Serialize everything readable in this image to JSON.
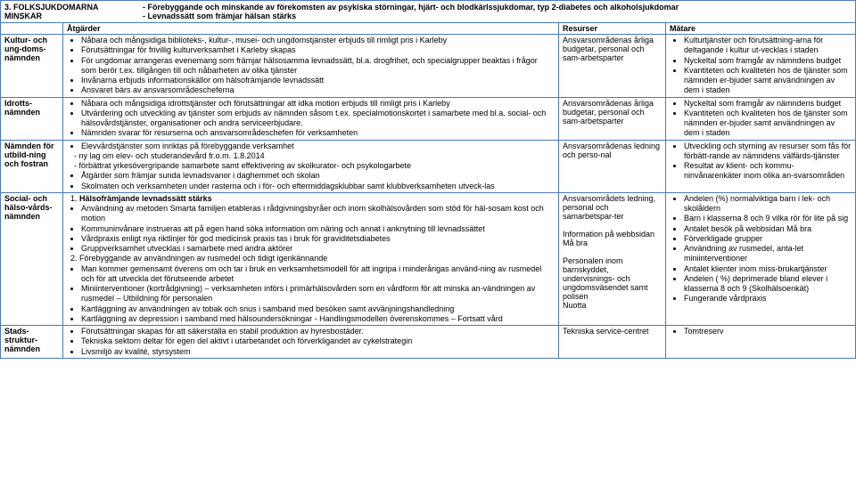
{
  "title_number": "3. FOLKSJUKDOMARNA MINSKAR",
  "title_desc": "- Förebyggande och minskande av förekomsten av psykiska störningar, hjärt- och blodkärlssjukdomar, typ 2-diabetes och alkoholsjukdomar\n- Levnadssätt som främjar hälsan stärks",
  "headers": {
    "c1": "",
    "c2": "Åtgärder",
    "c3": "Resurser",
    "c4": "Mätare"
  },
  "rows": [
    {
      "committee": "Kultur- och ung-doms-nämnden",
      "actions": [
        "Nåbara och mångsidiga biblioteks-, kultur-, musei- och ungdomstjänster erbjuds till rimligt pris i Karleby",
        "Förutsättningar för frivillig kulturverksamhet i Karleby skapas",
        "För ungdomar arrangeras evenemang som främjar hälsosamma levnadssätt, bl.a. drogfrihet, och specialgrupper beaktas i frågor som berör t.ex. tillgången till och nåbarheten av olika tjänster",
        "Invånarna erbjuds informationskällor om hälsofrämjande levnadssätt",
        "Ansvaret bärs av ansvarsområdescheferna"
      ],
      "resources": "Ansvarsområdenas årliga budgetar, personal och sam-arbetsparter",
      "metrics": [
        "Kulturtjänster och förutsättning-arna för deltagande i kultur ut-vecklas i staden",
        "Nyckeltal som framgår av nämndens budget",
        "Kvantiteten och kvaliteten hos de tjänster som nämnden er-bjuder samt användningen av dem i staden"
      ]
    },
    {
      "committee": "Idrotts-nämnden",
      "actions": [
        "Nåbara och mångsidiga idrottstjänster och förutsättningar att idka motion erbjuds till rimligt pris i Karleby",
        "Utvärdering och utveckling av tjänster som erbjuds av nämnden såsom t.ex. specialmotionskortet i samarbete med bl.a. social- och hälsovårdstjänster, organisationer och andra serviceerbjudare.",
        "Nämnden svarar för resurserna och ansvarsområdeschefen för verksamheten"
      ],
      "resources": "Ansvarsområdenas årliga budgetar, personal och sam-arbetsparter",
      "metrics": [
        "Nyckeltal som framgår av nämndens budget",
        "Kvantiteten och kvaliteten hos de tjänster som nämnden er-bjuder samt användningen av dem i staden"
      ]
    },
    {
      "committee": "Nämnden för utbild-ning och fostran",
      "actions_mixed": [
        {
          "type": "ul",
          "items": [
            "Elevvårdstjänster som inriktas på förebyggande verksamhet"
          ]
        },
        {
          "type": "dash",
          "items": [
            "ny lag om elev- och studerandevård fr.o.m. 1.8.2014",
            "förbättrat yrkesövergripande samarbete samt effektivering av skolkurator- och psykologarbete"
          ]
        },
        {
          "type": "ul",
          "items": [
            "Åtgärder som främjar sunda levnadsvanor i daghemmet och skolan",
            "Skolmaten och verksamheten under rasterna och i för- och eftermiddagsklubbar samt klubbverksamheten utveck-las"
          ]
        }
      ],
      "resources": "Ansvarsområdenas ledning och perso-nal",
      "metrics": [
        "Utveckling och styrning av resurser som fås för förbätt-rande av nämndens välfärds-tjänster",
        "Resultat av klient- och kommu-ninvånarenkäter inom olika an-svarsområden"
      ]
    },
    {
      "committee": "Social- och hälso-vårds-nämnden",
      "actions_mixed": [
        {
          "type": "num",
          "text": "1.   Hälsofrämjande levnadssätt stärks",
          "bold": true
        },
        {
          "type": "ul",
          "items": [
            "Användning av metoden Smarta familjen etableras i rådgivningsbyråer och inom skolhälsovården som stöd för häl-sosam kost och motion",
            "Kommuninvånare instrueras att på egen hand söka information om näring och annat i anknytning till levnadssättet",
            "Vårdpraxis enligt nya riktlinjer för god medicinsk praxis tas i bruk för graviditetsdiabetes",
            "Gruppverksamhet utvecklas i samarbete med andra aktörer"
          ]
        },
        {
          "type": "num",
          "text": "2.   Förebyggande av användningen av rusmedel och tidigt igenkännande"
        },
        {
          "type": "ul",
          "items": [
            "Man kommer gemensamt överens om och tar i bruk en verksamhetsmodell för att ingripa i minderårigas använd-ning av rusmedel och för att utveckla det förutseende arbetet",
            "Miniinterventioner (kortrådgivning) – verksamheten införs i primärhälsovården som en vårdform för att minska an-vändningen av rusmedel – Utbildning för personalen",
            "Kartläggning av användningen av tobak och snus i samband med besöken samt avvänjningshandledning",
            "Kartläggning av depression i samband med hälsoundersökningar - Handlingsmodellen överenskommes – Fortsatt vård"
          ]
        }
      ],
      "resources": "Ansvarsområdets ledning, personal och samarbetspar-ter\n\nInformation på webbsidan Må bra\n\nPersonalen inom barnskyddet, undervisnings- och ungdomsväsendet samt polisen\nNuotta",
      "metrics": [
        "Andelen (%) normalviktiga barn i lek- och skolåldern",
        "Barn i klasserna 8 och 9 vilka rör för lite på sig",
        "Antalet besök på webbsidan Må bra",
        "Förverkligade grupper",
        "Användning av rusmedel, anta-let miniinterventioner",
        "Antalet klienter inom miss-brukartjänster",
        "Andelen ( %) deprimerade bland elever i klasserna 8 och 9 (Skolhälsoenkät)",
        "Fungerande vårdpraxis"
      ]
    },
    {
      "committee": "Stads-struktur-nämnden",
      "actions": [
        "Förutsättningar skapas för att säkerställa en stabil produktion av hyresbostäder.",
        "Tekniska sektorn deltar för egen del aktivt i utarbetandet och förverkligandet av cykelstrategin",
        "Livsmiljö av kvalité, styrsystem"
      ],
      "resources": "Tekniska service-centret",
      "metrics": [
        "Tomtreserv"
      ]
    }
  ]
}
